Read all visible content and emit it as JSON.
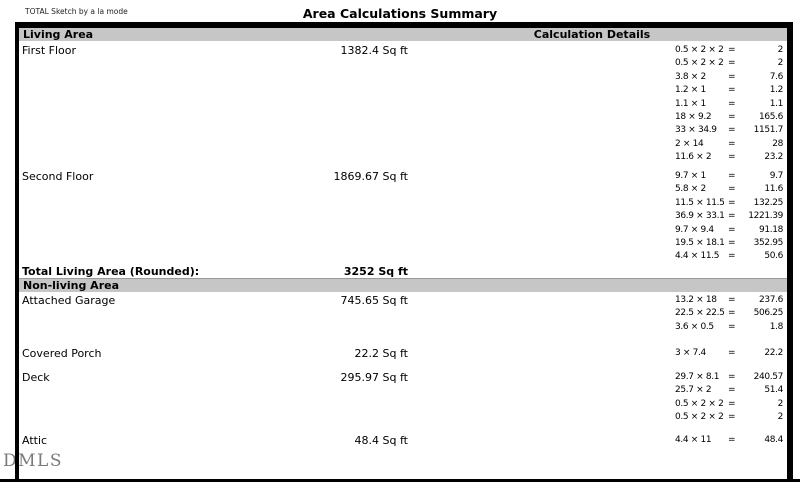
{
  "meta": {
    "tagline": "TOTAL Sketch by a la mode",
    "title": "Area Calculations Summary",
    "watermark": "DMLS"
  },
  "headers": {
    "living": "Living Area",
    "calc_details": "Calculation Details",
    "nonliving": "Non-living Area"
  },
  "symbols": {
    "equals": "="
  },
  "rows": [
    {
      "label": "First Floor",
      "area": "1382.4 Sq ft",
      "section": "living",
      "calcs": [
        {
          "expr": "0.5 × 2 × 2",
          "val": "2"
        },
        {
          "expr": "0.5 × 2 × 2",
          "val": "2"
        },
        {
          "expr": "3.8 × 2",
          "val": "7.6"
        },
        {
          "expr": "1.2 × 1",
          "val": "1.2"
        },
        {
          "expr": "1.1 × 1",
          "val": "1.1"
        },
        {
          "expr": "18 × 9.2",
          "val": "165.6"
        },
        {
          "expr": "33 × 34.9",
          "val": "1151.7"
        },
        {
          "expr": "2 × 14",
          "val": "28"
        },
        {
          "expr": "11.6 × 2",
          "val": "23.2"
        }
      ]
    },
    {
      "label": "Second Floor",
      "area": "1869.67 Sq ft",
      "section": "living",
      "calcs": [
        {
          "expr": "9.7 × 1",
          "val": "9.7"
        },
        {
          "expr": "5.8 × 2",
          "val": "11.6"
        },
        {
          "expr": "11.5 × 11.5",
          "val": "132.25"
        },
        {
          "expr": "36.9 × 33.1",
          "val": "1221.39"
        },
        {
          "expr": "9.7 × 9.4",
          "val": "91.18"
        },
        {
          "expr": "19.5 × 18.1",
          "val": "352.95"
        },
        {
          "expr": "4.4 × 11.5",
          "val": "50.6"
        }
      ]
    },
    {
      "label": "Attached Garage",
      "area": "745.65 Sq ft",
      "section": "nonliving",
      "calcs": [
        {
          "expr": "13.2 × 18",
          "val": "237.6"
        },
        {
          "expr": "22.5 × 22.5",
          "val": "506.25"
        },
        {
          "expr": "3.6 × 0.5",
          "val": "1.8"
        }
      ]
    },
    {
      "label": "Covered Porch",
      "area": "22.2 Sq ft",
      "section": "nonliving",
      "calcs": [
        {
          "expr": "3 × 7.4",
          "val": "22.2"
        }
      ]
    },
    {
      "label": "Deck",
      "area": "295.97 Sq ft",
      "section": "nonliving",
      "calcs": [
        {
          "expr": "29.7 × 8.1",
          "val": "240.57"
        },
        {
          "expr": "25.7 × 2",
          "val": "51.4"
        },
        {
          "expr": "0.5 × 2 × 2",
          "val": "2"
        },
        {
          "expr": "0.5 × 2 × 2",
          "val": "2"
        }
      ]
    },
    {
      "label": "Attic",
      "area": "48.4 Sq ft",
      "section": "nonliving",
      "calcs": [
        {
          "expr": "4.4 × 11",
          "val": "48.4"
        }
      ]
    }
  ],
  "total": {
    "label": "Total Living Area (Rounded):",
    "value": "3252 Sq ft"
  }
}
